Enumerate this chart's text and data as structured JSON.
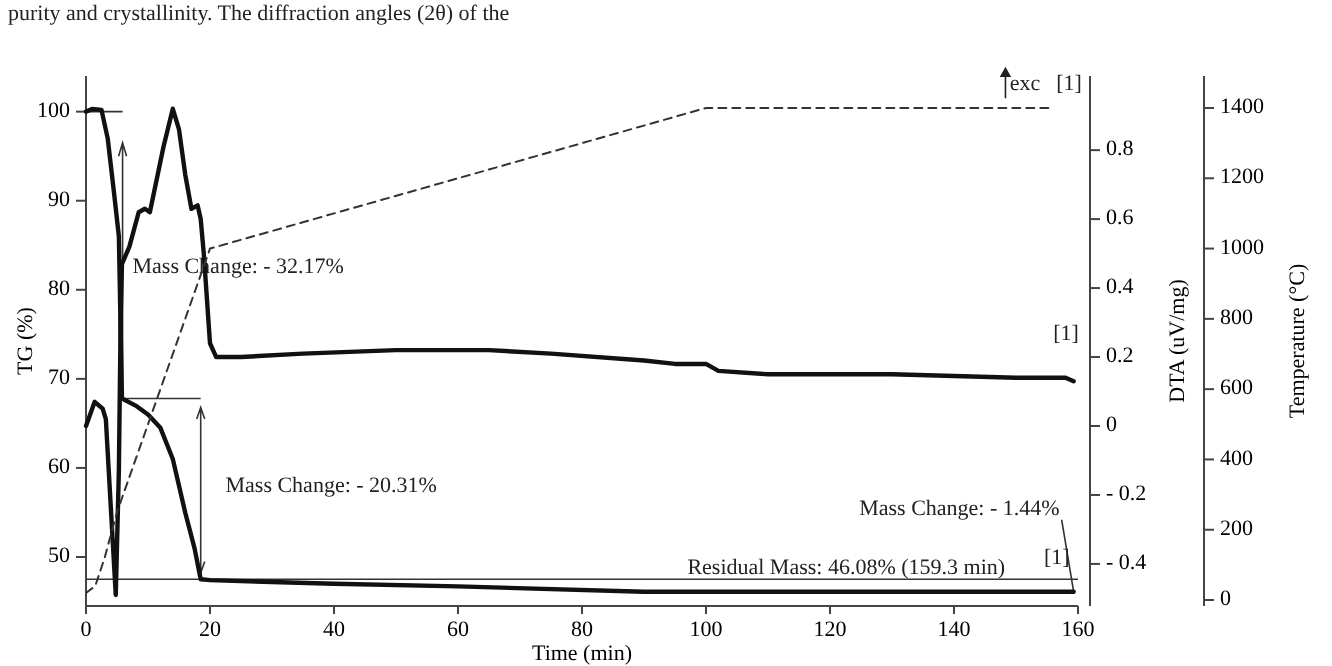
{
  "chart_data": {
    "type": "line",
    "xlabel": "Time (min)",
    "ylabel": "TG (%)",
    "y2label": "DTA (uV/mg)",
    "y3label": "Temperature (°C)",
    "xlim": [
      0,
      160
    ],
    "xticks": [
      0,
      20,
      40,
      60,
      80,
      100,
      120,
      140,
      160
    ],
    "ylim": [
      44.5,
      104
    ],
    "yticks": [
      50,
      60,
      70,
      80,
      90,
      100
    ],
    "y2lim": [
      -0.522,
      1.015
    ],
    "y2ticks": [
      {
        "value": -0.4,
        "label": "- 0.4"
      },
      {
        "value": -0.2,
        "label": "- 0.2"
      },
      0,
      0.2,
      0.4,
      0.6,
      0.8
    ],
    "y3lim": [
      -17,
      1491
    ],
    "y3ticks": [
      0,
      200,
      400,
      600,
      800,
      1000,
      1200,
      1400
    ],
    "grid": false,
    "line_style": "solid",
    "ref_lines": [
      {
        "axis": "y",
        "value": 47.5,
        "color": "#333333",
        "line_style": "solid"
      }
    ],
    "series": [
      {
        "color": "#111111",
        "x": [
          0,
          1,
          2.5,
          3.5,
          4.5,
          5.3,
          5.6,
          5.8,
          8,
          10,
          12,
          14,
          16,
          17.5,
          18.5,
          20,
          40,
          60,
          90,
          159.3
        ],
        "values": [
          100,
          100.3,
          100.2,
          97,
          91,
          86,
          75,
          67.8,
          67,
          66,
          64.5,
          61,
          55,
          51,
          47.5,
          47.4,
          47,
          46.7,
          46.1,
          46.1
        ]
      },
      {
        "color": "#111111",
        "axis": "y2",
        "x": [
          0,
          1.4,
          2.7,
          3.2,
          4.8,
          5.3,
          5.6,
          5.8,
          7,
          8.5,
          9.5,
          10.3,
          11,
          12.5,
          14,
          15,
          16,
          17,
          18,
          18.5,
          19,
          20,
          21,
          25,
          35,
          50,
          65,
          75,
          90,
          95,
          100,
          102,
          110,
          130,
          150,
          158,
          159.3
        ],
        "values": [
          0,
          0.07,
          0.05,
          0.02,
          -0.49,
          -0.13,
          0.32,
          0.47,
          0.52,
          0.62,
          0.63,
          0.62,
          0.68,
          0.81,
          0.92,
          0.86,
          0.73,
          0.63,
          0.64,
          0.6,
          0.5,
          0.24,
          0.2,
          0.2,
          0.21,
          0.22,
          0.22,
          0.21,
          0.19,
          0.18,
          0.18,
          0.16,
          0.15,
          0.15,
          0.14,
          0.14,
          0.13
        ]
      },
      {
        "color": "#333333",
        "axis": "y3",
        "line_style": "dashed",
        "x": [
          0,
          1.5,
          3,
          5,
          10,
          20,
          100,
          156
        ],
        "values": [
          20,
          40,
          120,
          250,
          500,
          1000,
          1400,
          1400
        ]
      }
    ],
    "annotations": [
      "purity and crystallinity. The diffraction angles (2θ) of the",
      "Mass Change: - 32.17%",
      "Mass Change: - 20.31%",
      {
        "text": "Mass Change: - 1.44%",
        "x": 159.3,
        "y": 46.1
      },
      "Residual Mass: 46.08% (159.3 min)",
      "[1]",
      "[1]",
      "exc",
      "[1]"
    ]
  }
}
